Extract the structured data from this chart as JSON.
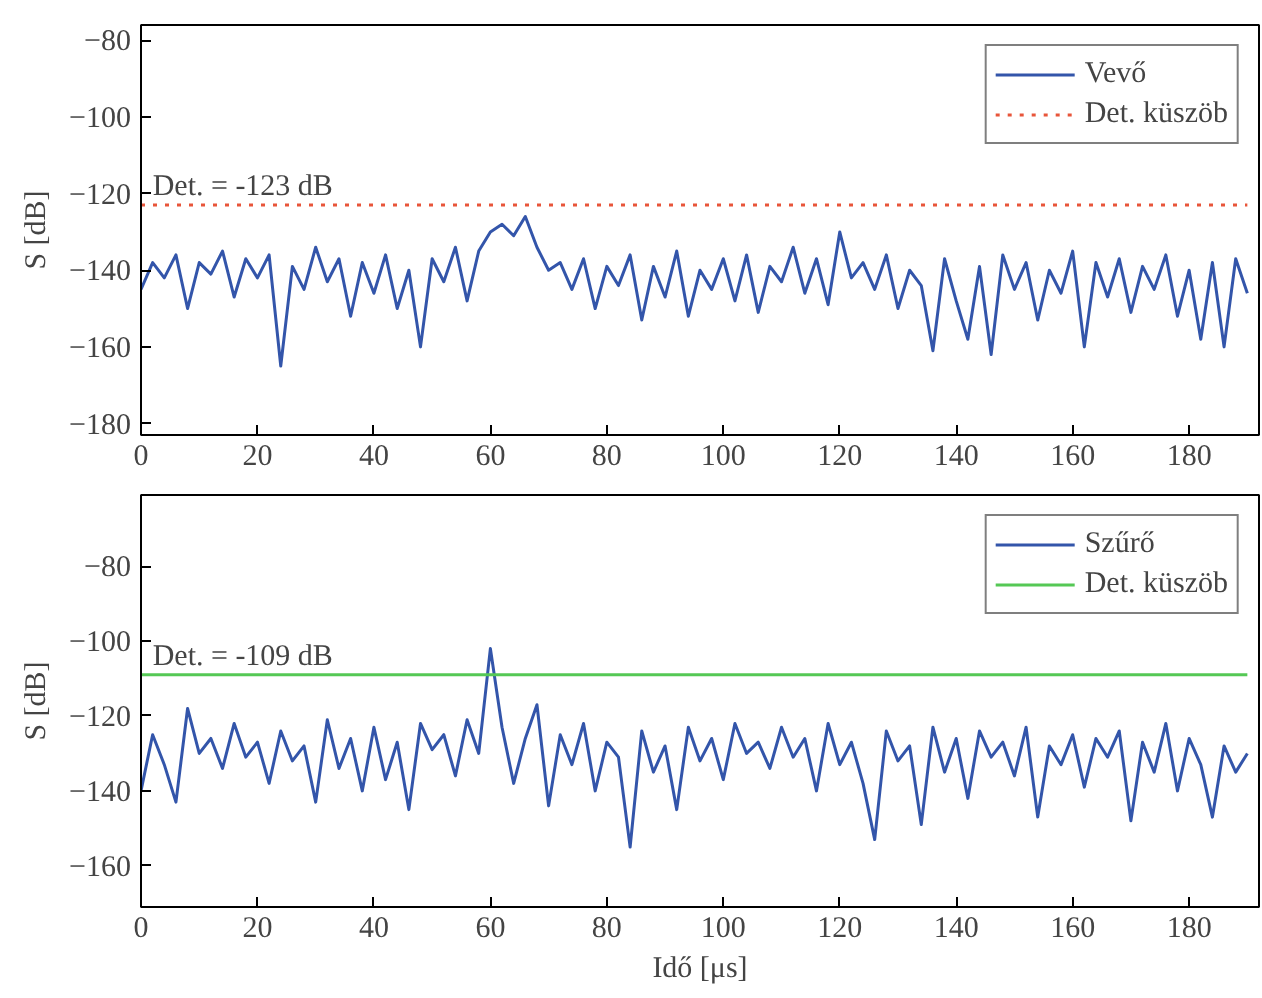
{
  "chart_data": [
    {
      "type": "line",
      "ylabel": "S [dB]",
      "xlim": [
        0,
        192
      ],
      "ylim": [
        -183,
        -76
      ],
      "xticks": [
        0,
        20,
        40,
        60,
        80,
        100,
        120,
        140,
        160,
        180
      ],
      "yticks": [
        -180,
        -160,
        -140,
        -120,
        -100,
        -80
      ],
      "grid": false,
      "legend": "top right",
      "x": [
        0,
        2,
        4,
        6,
        8,
        10,
        12,
        14,
        16,
        18,
        20,
        22,
        24,
        26,
        28,
        30,
        32,
        34,
        36,
        38,
        40,
        42,
        44,
        46,
        48,
        50,
        52,
        54,
        56,
        58,
        60,
        62,
        64,
        66,
        68,
        70,
        72,
        74,
        76,
        78,
        80,
        82,
        84,
        86,
        88,
        90,
        92,
        94,
        96,
        98,
        100,
        102,
        104,
        106,
        108,
        110,
        112,
        114,
        116,
        118,
        120,
        122,
        124,
        126,
        128,
        130,
        132,
        134,
        136,
        138,
        140,
        142,
        144,
        146,
        148,
        150,
        152,
        154,
        156,
        158,
        160,
        162,
        164,
        166,
        168,
        170,
        172,
        174,
        176,
        178,
        180,
        182,
        184,
        186,
        188,
        190
      ],
      "series": [
        {
          "name": "Vevő",
          "color": "#3355aa",
          "line_style": "solid",
          "values": [
            -145,
            -138,
            -142,
            -136,
            -150,
            -138,
            -141,
            -135,
            -147,
            -137,
            -142,
            -136,
            -165,
            -139,
            -145,
            -134,
            -143,
            -137,
            -152,
            -138,
            -146,
            -136,
            -150,
            -140,
            -160,
            -137,
            -143,
            -134,
            -148,
            -135,
            -130,
            -128,
            -131,
            -126,
            -134,
            -140,
            -138,
            -145,
            -137,
            -150,
            -139,
            -144,
            -136,
            -153,
            -139,
            -147,
            -135,
            -152,
            -140,
            -145,
            -137,
            -148,
            -136,
            -151,
            -139,
            -143,
            -134,
            -146,
            -137,
            -149,
            -130,
            -142,
            -138,
            -145,
            -136,
            -150,
            -140,
            -144,
            -161,
            -137,
            -148,
            -158,
            -139,
            -162,
            -136,
            -145,
            -138,
            -153,
            -140,
            -146,
            -135,
            -160,
            -138,
            -147,
            -137,
            -151,
            -139,
            -145,
            -136,
            -152,
            -140,
            -158,
            -138,
            -160,
            -137,
            -146
          ]
        },
        {
          "name": "Det. küszöb",
          "color": "#e8553a",
          "line_style": "dotted",
          "values": [
            -123,
            -123,
            -123,
            -123,
            -123,
            -123,
            -123,
            -123,
            -123,
            -123,
            -123,
            -123,
            -123,
            -123,
            -123,
            -123,
            -123,
            -123,
            -123,
            -123,
            -123,
            -123,
            -123,
            -123,
            -123,
            -123,
            -123,
            -123,
            -123,
            -123,
            -123,
            -123,
            -123,
            -123,
            -123,
            -123,
            -123,
            -123,
            -123,
            -123,
            -123,
            -123,
            -123,
            -123,
            -123,
            -123,
            -123,
            -123,
            -123,
            -123,
            -123,
            -123,
            -123,
            -123,
            -123,
            -123,
            -123,
            -123,
            -123,
            -123,
            -123,
            -123,
            -123,
            -123,
            -123,
            -123,
            -123,
            -123,
            -123,
            -123,
            -123,
            -123,
            -123,
            -123,
            -123,
            -123,
            -123,
            -123,
            -123,
            -123,
            -123,
            -123,
            -123,
            -123,
            -123,
            -123,
            -123,
            -123,
            -123,
            -123,
            -123,
            -123,
            -123,
            -123,
            -123,
            -123
          ]
        }
      ],
      "annotations": [
        {
          "text": "Det. = -123 dB",
          "x": 2,
          "y": -123
        }
      ]
    },
    {
      "type": "line",
      "xlabel": "Idő [μs]",
      "ylabel": "S [dB]",
      "xlim": [
        0,
        192
      ],
      "ylim": [
        -171,
        -61
      ],
      "xticks": [
        0,
        20,
        40,
        60,
        80,
        100,
        120,
        140,
        160,
        180
      ],
      "yticks": [
        -160,
        -140,
        -120,
        -100,
        -80
      ],
      "grid": false,
      "legend": "top right",
      "x": [
        0,
        2,
        4,
        6,
        8,
        10,
        12,
        14,
        16,
        18,
        20,
        22,
        24,
        26,
        28,
        30,
        32,
        34,
        36,
        38,
        40,
        42,
        44,
        46,
        48,
        50,
        52,
        54,
        56,
        58,
        60,
        62,
        64,
        66,
        68,
        70,
        72,
        74,
        76,
        78,
        80,
        82,
        84,
        86,
        88,
        90,
        92,
        94,
        96,
        98,
        100,
        102,
        104,
        106,
        108,
        110,
        112,
        114,
        116,
        118,
        120,
        122,
        124,
        126,
        128,
        130,
        132,
        134,
        136,
        138,
        140,
        142,
        144,
        146,
        148,
        150,
        152,
        154,
        156,
        158,
        160,
        162,
        164,
        166,
        168,
        170,
        172,
        174,
        176,
        178,
        180,
        182,
        184,
        186,
        188,
        190
      ],
      "series": [
        {
          "name": "Szűrő",
          "color": "#3355aa",
          "line_style": "solid",
          "values": [
            -140,
            -125,
            -133,
            -143,
            -118,
            -130,
            -126,
            -134,
            -122,
            -131,
            -127,
            -138,
            -124,
            -132,
            -128,
            -143,
            -121,
            -134,
            -126,
            -140,
            -123,
            -137,
            -127,
            -145,
            -122,
            -129,
            -125,
            -136,
            -121,
            -130,
            -102,
            -123,
            -138,
            -126,
            -117,
            -144,
            -125,
            -133,
            -122,
            -140,
            -127,
            -131,
            -155,
            -124,
            -135,
            -128,
            -145,
            -123,
            -132,
            -126,
            -137,
            -122,
            -130,
            -127,
            -134,
            -123,
            -131,
            -126,
            -140,
            -122,
            -133,
            -127,
            -138,
            -153,
            -124,
            -132,
            -128,
            -149,
            -123,
            -135,
            -126,
            -142,
            -124,
            -131,
            -127,
            -136,
            -123,
            -147,
            -128,
            -133,
            -125,
            -139,
            -126,
            -131,
            -124,
            -148,
            -127,
            -135,
            -122,
            -140,
            -126,
            -133,
            -147,
            -128,
            -135,
            -130
          ]
        },
        {
          "name": "Det. küszöb",
          "color": "#55c855",
          "line_style": "solid",
          "values": [
            -109,
            -109,
            -109,
            -109,
            -109,
            -109,
            -109,
            -109,
            -109,
            -109,
            -109,
            -109,
            -109,
            -109,
            -109,
            -109,
            -109,
            -109,
            -109,
            -109,
            -109,
            -109,
            -109,
            -109,
            -109,
            -109,
            -109,
            -109,
            -109,
            -109,
            -109,
            -109,
            -109,
            -109,
            -109,
            -109,
            -109,
            -109,
            -109,
            -109,
            -109,
            -109,
            -109,
            -109,
            -109,
            -109,
            -109,
            -109,
            -109,
            -109,
            -109,
            -109,
            -109,
            -109,
            -109,
            -109,
            -109,
            -109,
            -109,
            -109,
            -109,
            -109,
            -109,
            -109,
            -109,
            -109,
            -109,
            -109,
            -109,
            -109,
            -109,
            -109,
            -109,
            -109,
            -109,
            -109,
            -109,
            -109,
            -109,
            -109,
            -109,
            -109,
            -109,
            -109,
            -109,
            -109,
            -109,
            -109,
            -109,
            -109,
            -109,
            -109,
            -109,
            -109,
            -109,
            -109
          ]
        }
      ],
      "annotations": [
        {
          "text": "Det. = -109 dB",
          "x": 2,
          "y": -109
        }
      ]
    }
  ]
}
